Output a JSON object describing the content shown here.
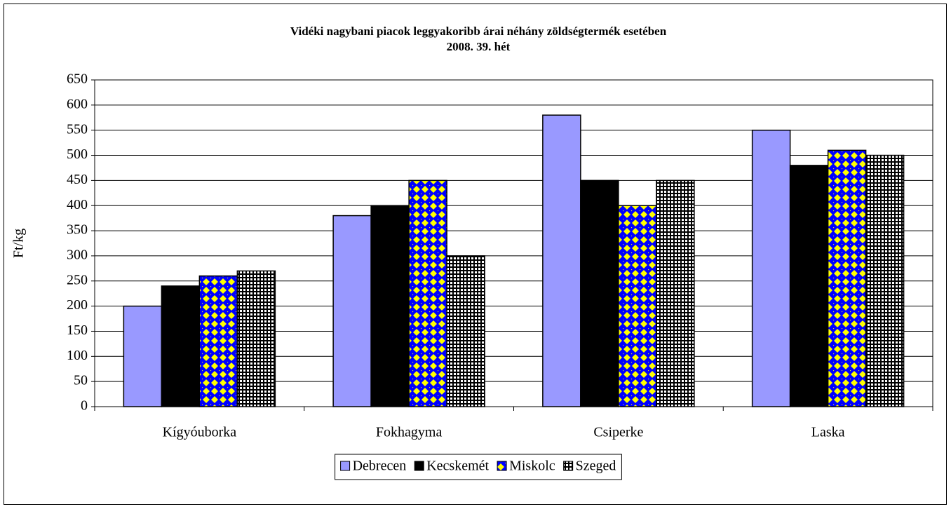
{
  "chart_data": {
    "type": "bar",
    "title": "Vidéki nagybani piacok leggyakoribb árai néhány zöldségtermék esetében",
    "subtitle": "2008. 39. hét",
    "y_label": "Ft/kg",
    "categories": [
      "Kígyóuborka",
      "Fokhagyma",
      "Csiperke",
      "Laska"
    ],
    "series": [
      {
        "name": "Debrecen",
        "color": "#9999ff",
        "values": [
          200,
          380,
          580,
          550
        ]
      },
      {
        "name": "Kecskemét",
        "color": "#000000",
        "values": [
          240,
          400,
          450,
          480
        ]
      },
      {
        "name": "Miskolc",
        "color": "#0000ff",
        "pattern": "diamond",
        "values": [
          260,
          450,
          400,
          510
        ]
      },
      {
        "name": "Szeged",
        "color": "#ffffff",
        "pattern": "grid",
        "values": [
          270,
          300,
          450,
          500
        ]
      }
    ],
    "ylim": [
      0,
      650
    ],
    "yticks": [
      0,
      50,
      100,
      150,
      200,
      250,
      300,
      350,
      400,
      450,
      500,
      550,
      600,
      650
    ],
    "grid": true,
    "legend": "bottom"
  }
}
